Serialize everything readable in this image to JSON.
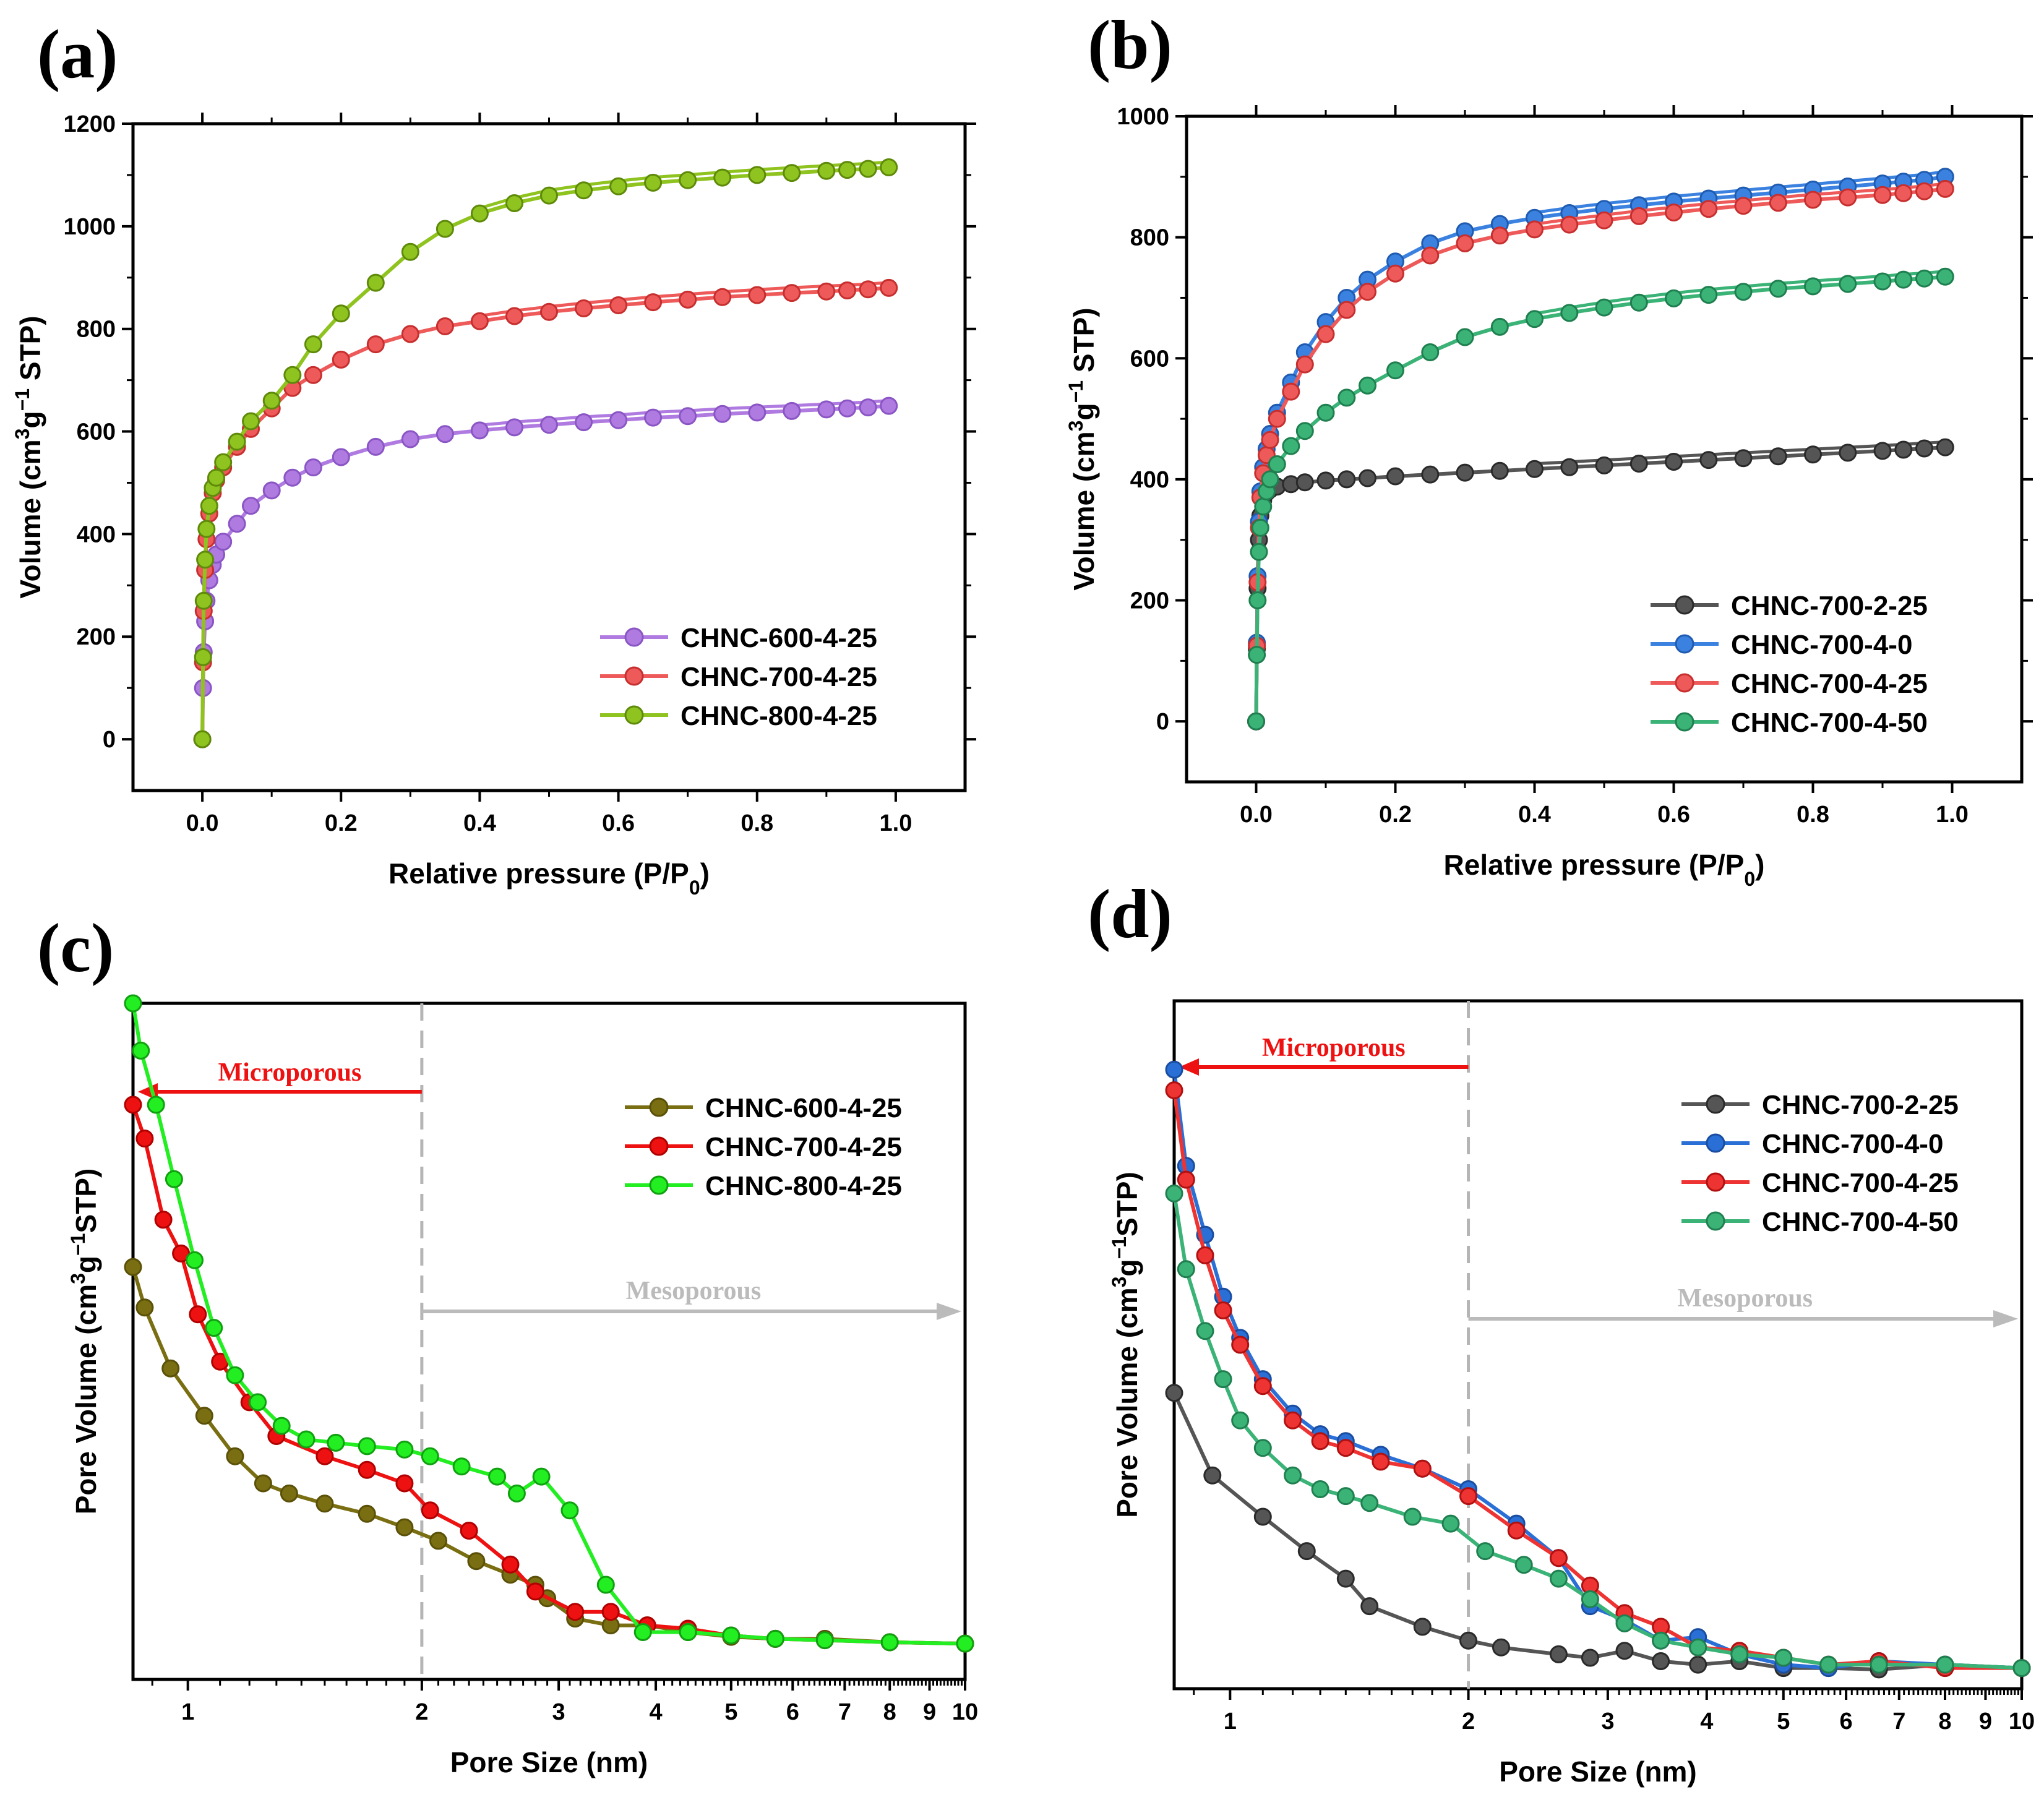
{
  "chart_data": [
    {
      "id": "a",
      "type": "scatter",
      "panel_label": "(a)",
      "xlabel": "Relative pressure (P/P",
      "xlabel_sub": "0",
      "xlabel_end": ")",
      "ylabel_pre": "Volume (cm",
      "ylabel_sup1": "3",
      "ylabel_mid": "g",
      "ylabel_sup2": "−1",
      "ylabel_post": " STP)",
      "xlim": [
        -0.1,
        1.1
      ],
      "ylim": [
        -100,
        1200
      ],
      "xticks": [
        "0.0",
        "0.2",
        "0.4",
        "0.6",
        "0.8",
        "1.0"
      ],
      "yticks": [
        "0",
        "200",
        "400",
        "600",
        "800",
        "1000",
        "1200"
      ],
      "legend_position": "bottom-right",
      "series": [
        {
          "name": "CHNC-600-4-25",
          "color": "#b07be0",
          "edge": "#8a55c4",
          "x": [
            0,
            0.001,
            0.002,
            0.004,
            0.006,
            0.01,
            0.015,
            0.02,
            0.03,
            0.05,
            0.07,
            0.1,
            0.13,
            0.16,
            0.2,
            0.25,
            0.3,
            0.35,
            0.4,
            0.45,
            0.5,
            0.55,
            0.6,
            0.65,
            0.7,
            0.75,
            0.8,
            0.85,
            0.9,
            0.93,
            0.96,
            0.99
          ],
          "values": [
            0,
            100,
            170,
            230,
            270,
            310,
            340,
            360,
            385,
            420,
            455,
            485,
            510,
            530,
            550,
            570,
            585,
            595,
            602,
            608,
            613,
            618,
            622,
            627,
            630,
            634,
            637,
            640,
            643,
            645,
            647,
            650
          ]
        },
        {
          "name": "CHNC-700-4-25",
          "color": "#ee5a5a",
          "edge": "#c72f2f",
          "x": [
            0,
            0.001,
            0.002,
            0.004,
            0.006,
            0.01,
            0.015,
            0.02,
            0.03,
            0.05,
            0.07,
            0.1,
            0.13,
            0.16,
            0.2,
            0.25,
            0.3,
            0.35,
            0.4,
            0.45,
            0.5,
            0.55,
            0.6,
            0.65,
            0.7,
            0.75,
            0.8,
            0.85,
            0.9,
            0.93,
            0.96,
            0.99
          ],
          "values": [
            0,
            150,
            250,
            330,
            390,
            440,
            480,
            505,
            530,
            570,
            605,
            645,
            685,
            710,
            740,
            770,
            790,
            805,
            815,
            825,
            833,
            840,
            846,
            852,
            857,
            862,
            866,
            870,
            873,
            875,
            877,
            880
          ]
        },
        {
          "name": "CHNC-800-4-25",
          "color": "#8fc31f",
          "edge": "#5e8a0a",
          "x": [
            0,
            0.001,
            0.002,
            0.004,
            0.006,
            0.01,
            0.015,
            0.02,
            0.03,
            0.05,
            0.07,
            0.1,
            0.13,
            0.16,
            0.2,
            0.25,
            0.3,
            0.35,
            0.4,
            0.45,
            0.5,
            0.55,
            0.6,
            0.65,
            0.7,
            0.75,
            0.8,
            0.85,
            0.9,
            0.93,
            0.96,
            0.99
          ],
          "values": [
            0,
            160,
            270,
            350,
            410,
            455,
            490,
            510,
            540,
            580,
            620,
            660,
            710,
            770,
            830,
            890,
            950,
            995,
            1025,
            1045,
            1060,
            1070,
            1078,
            1085,
            1090,
            1095,
            1100,
            1104,
            1108,
            1110,
            1112,
            1115
          ]
        }
      ]
    },
    {
      "id": "b",
      "type": "scatter",
      "panel_label": "(b)",
      "xlabel": "Relative pressure (P/P",
      "xlabel_sub": "0",
      "xlabel_end": ")",
      "ylabel_pre": "Volume (cm",
      "ylabel_sup1": "3",
      "ylabel_mid": "g",
      "ylabel_sup2": "−1",
      "ylabel_post": " STP)",
      "xlim": [
        -0.1,
        1.1
      ],
      "ylim": [
        -100,
        1000
      ],
      "xticks": [
        "0.0",
        "0.2",
        "0.4",
        "0.6",
        "0.8",
        "1.0"
      ],
      "yticks": [
        "0",
        "200",
        "400",
        "600",
        "800",
        "1000"
      ],
      "legend_position": "bottom-right",
      "series": [
        {
          "name": "CHNC-700-2-25",
          "color": "#555555",
          "edge": "#2a2a2a",
          "x": [
            0,
            0.001,
            0.002,
            0.004,
            0.006,
            0.01,
            0.015,
            0.02,
            0.03,
            0.05,
            0.07,
            0.1,
            0.13,
            0.16,
            0.2,
            0.25,
            0.3,
            0.35,
            0.4,
            0.45,
            0.5,
            0.55,
            0.6,
            0.65,
            0.7,
            0.75,
            0.8,
            0.85,
            0.9,
            0.93,
            0.96,
            0.99
          ],
          "values": [
            0,
            120,
            220,
            300,
            340,
            365,
            378,
            383,
            388,
            392,
            395,
            398,
            400,
            402,
            405,
            408,
            411,
            414,
            417,
            420,
            423,
            426,
            429,
            432,
            435,
            438,
            441,
            444,
            447,
            449,
            451,
            453
          ]
        },
        {
          "name": "CHNC-700-4-0",
          "color": "#3b82e0",
          "edge": "#1f5bb0",
          "x": [
            0,
            0.001,
            0.002,
            0.004,
            0.006,
            0.01,
            0.015,
            0.02,
            0.03,
            0.05,
            0.07,
            0.1,
            0.13,
            0.16,
            0.2,
            0.25,
            0.3,
            0.35,
            0.4,
            0.45,
            0.5,
            0.55,
            0.6,
            0.65,
            0.7,
            0.75,
            0.8,
            0.85,
            0.9,
            0.93,
            0.96,
            0.99
          ],
          "values": [
            0,
            130,
            240,
            330,
            380,
            420,
            450,
            475,
            510,
            560,
            610,
            660,
            700,
            730,
            760,
            790,
            810,
            822,
            832,
            840,
            847,
            853,
            859,
            864,
            869,
            874,
            879,
            884,
            889,
            892,
            895,
            900
          ]
        },
        {
          "name": "CHNC-700-4-25",
          "color": "#ee5a5a",
          "edge": "#c72f2f",
          "x": [
            0,
            0.001,
            0.002,
            0.004,
            0.006,
            0.01,
            0.015,
            0.02,
            0.03,
            0.05,
            0.07,
            0.1,
            0.13,
            0.16,
            0.2,
            0.25,
            0.3,
            0.35,
            0.4,
            0.45,
            0.5,
            0.55,
            0.6,
            0.65,
            0.7,
            0.75,
            0.8,
            0.85,
            0.9,
            0.93,
            0.96,
            0.99
          ],
          "values": [
            0,
            125,
            230,
            320,
            370,
            410,
            440,
            465,
            500,
            545,
            590,
            640,
            680,
            710,
            740,
            770,
            790,
            803,
            813,
            821,
            828,
            835,
            841,
            847,
            852,
            857,
            862,
            866,
            870,
            873,
            876,
            880
          ]
        },
        {
          "name": "CHNC-700-4-50",
          "color": "#3bb377",
          "edge": "#1f7f4f",
          "x": [
            0,
            0.001,
            0.002,
            0.004,
            0.006,
            0.01,
            0.015,
            0.02,
            0.03,
            0.05,
            0.07,
            0.1,
            0.13,
            0.16,
            0.2,
            0.25,
            0.3,
            0.35,
            0.4,
            0.45,
            0.5,
            0.55,
            0.6,
            0.65,
            0.7,
            0.75,
            0.8,
            0.85,
            0.9,
            0.93,
            0.96,
            0.99
          ],
          "values": [
            0,
            110,
            200,
            280,
            320,
            355,
            380,
            400,
            425,
            455,
            480,
            510,
            535,
            555,
            580,
            610,
            635,
            652,
            665,
            675,
            684,
            692,
            699,
            705,
            710,
            715,
            719,
            723,
            727,
            730,
            732,
            735
          ]
        }
      ]
    },
    {
      "id": "c",
      "type": "line",
      "panel_label": "(c)",
      "xscale": "log",
      "xlabel": "Pore Size (nm)",
      "ylabel_pre": "Pore Volume (cm",
      "ylabel_sup1": "3",
      "ylabel_mid": "g",
      "ylabel_sup2": "−1",
      "ylabel_post": "STP)",
      "xlim": [
        0.85,
        10
      ],
      "ylim": [
        0,
        1
      ],
      "xticks": [
        "1",
        "2",
        "3",
        "4",
        "5",
        "6",
        "7",
        "8",
        "9",
        "10"
      ],
      "xtick_values": [
        1,
        2,
        3,
        4,
        5,
        6,
        7,
        8,
        9,
        10
      ],
      "divider_x": 2,
      "legend_position": "top-right",
      "annotations": {
        "micro": "Microporous",
        "meso": "Mesoporous",
        "micro_color": "#ee1111",
        "meso_color": "#bbbbbb"
      },
      "series": [
        {
          "name": "CHNC-600-4-25",
          "color": "#7a6e12",
          "edge": "#5a5008",
          "x": [
            0.85,
            0.88,
            0.95,
            1.05,
            1.15,
            1.25,
            1.35,
            1.5,
            1.7,
            1.9,
            2.1,
            2.35,
            2.6,
            2.8,
            2.9,
            3.15,
            3.5,
            3.9,
            4.4,
            5.0,
            5.7,
            6.6,
            8.0,
            10
          ],
          "values": [
            0.61,
            0.55,
            0.46,
            0.39,
            0.33,
            0.29,
            0.275,
            0.26,
            0.245,
            0.225,
            0.205,
            0.175,
            0.155,
            0.14,
            0.12,
            0.09,
            0.08,
            0.08,
            0.07,
            0.063,
            0.06,
            0.06,
            0.055,
            0.053
          ]
        },
        {
          "name": "CHNC-700-4-25",
          "color": "#ee1111",
          "edge": "#b00000",
          "x": [
            0.85,
            0.88,
            0.93,
            0.98,
            1.03,
            1.1,
            1.2,
            1.3,
            1.5,
            1.7,
            1.9,
            2.05,
            2.3,
            2.6,
            2.8,
            3.15,
            3.5,
            3.9,
            4.4,
            5.0,
            5.7,
            6.6,
            8.0,
            10
          ],
          "values": [
            0.85,
            0.8,
            0.68,
            0.63,
            0.54,
            0.47,
            0.41,
            0.36,
            0.33,
            0.31,
            0.29,
            0.25,
            0.22,
            0.17,
            0.13,
            0.1,
            0.1,
            0.08,
            0.075,
            0.065,
            0.06,
            0.058,
            0.055,
            0.053
          ]
        },
        {
          "name": "CHNC-800-4-25",
          "color": "#22ee22",
          "edge": "#10a010",
          "x": [
            0.85,
            0.87,
            0.91,
            0.96,
            1.02,
            1.08,
            1.15,
            1.23,
            1.32,
            1.42,
            1.55,
            1.7,
            1.9,
            2.05,
            2.25,
            2.5,
            2.65,
            2.85,
            3.1,
            3.45,
            3.85,
            4.4,
            5.0,
            5.7,
            6.6,
            8.0,
            10
          ],
          "values": [
            1.0,
            0.93,
            0.85,
            0.74,
            0.62,
            0.52,
            0.45,
            0.41,
            0.375,
            0.355,
            0.35,
            0.345,
            0.34,
            0.33,
            0.315,
            0.3,
            0.275,
            0.3,
            0.25,
            0.14,
            0.07,
            0.07,
            0.065,
            0.06,
            0.058,
            0.055,
            0.053
          ]
        }
      ]
    },
    {
      "id": "d",
      "type": "line",
      "panel_label": "(d)",
      "xscale": "log",
      "xlabel": "Pore Size (nm)",
      "ylabel_pre": "Pore Volume (cm",
      "ylabel_sup1": "3",
      "ylabel_mid": "g",
      "ylabel_sup2": "−1",
      "ylabel_post": "STP)",
      "xlim": [
        0.85,
        10
      ],
      "ylim": [
        0,
        1
      ],
      "xticks": [
        "1",
        "2",
        "3",
        "4",
        "5",
        "6",
        "7",
        "8",
        "9",
        "10"
      ],
      "xtick_values": [
        1,
        2,
        3,
        4,
        5,
        6,
        7,
        8,
        9,
        10
      ],
      "divider_x": 2,
      "legend_position": "top-right",
      "annotations": {
        "micro": "Microporous",
        "meso": "Mesoporous",
        "micro_color": "#ee1111",
        "meso_color": "#bbbbbb"
      },
      "series": [
        {
          "name": "CHNC-700-2-25",
          "color": "#555555",
          "edge": "#2a2a2a",
          "x": [
            0.85,
            0.95,
            1.1,
            1.25,
            1.4,
            1.5,
            1.75,
            2.0,
            2.2,
            2.6,
            2.85,
            3.15,
            3.5,
            3.9,
            4.4,
            5.0,
            5.7,
            6.6,
            8.0,
            10
          ],
          "values": [
            0.43,
            0.31,
            0.25,
            0.2,
            0.16,
            0.12,
            0.09,
            0.07,
            0.06,
            0.05,
            0.045,
            0.055,
            0.04,
            0.035,
            0.04,
            0.03,
            0.03,
            0.028,
            0.035,
            0.03
          ]
        },
        {
          "name": "CHNC-700-4-0",
          "color": "#2a6fd6",
          "edge": "#1a4da0",
          "x": [
            0.85,
            0.88,
            0.93,
            0.98,
            1.03,
            1.1,
            1.2,
            1.3,
            1.4,
            1.55,
            1.75,
            2.0,
            2.3,
            2.6,
            2.85,
            3.15,
            3.5,
            3.9,
            4.4,
            5.0,
            5.7,
            6.6,
            8.0,
            10
          ],
          "values": [
            0.9,
            0.76,
            0.66,
            0.57,
            0.51,
            0.45,
            0.4,
            0.37,
            0.36,
            0.34,
            0.32,
            0.29,
            0.24,
            0.19,
            0.12,
            0.1,
            0.07,
            0.075,
            0.05,
            0.035,
            0.03,
            0.04,
            0.035,
            0.03
          ]
        },
        {
          "name": "CHNC-700-4-25",
          "color": "#ee3333",
          "edge": "#b01010",
          "x": [
            0.85,
            0.88,
            0.93,
            0.98,
            1.03,
            1.1,
            1.2,
            1.3,
            1.4,
            1.55,
            1.75,
            2.0,
            2.3,
            2.6,
            2.85,
            3.15,
            3.5,
            3.9,
            4.4,
            5.0,
            5.7,
            6.6,
            8.0,
            10
          ],
          "values": [
            0.87,
            0.74,
            0.63,
            0.55,
            0.5,
            0.44,
            0.39,
            0.36,
            0.35,
            0.33,
            0.32,
            0.28,
            0.23,
            0.19,
            0.15,
            0.11,
            0.09,
            0.06,
            0.055,
            0.045,
            0.035,
            0.04,
            0.03,
            0.03
          ]
        },
        {
          "name": "CHNC-700-4-50",
          "color": "#3bb377",
          "edge": "#1f7f4f",
          "x": [
            0.85,
            0.88,
            0.93,
            0.98,
            1.03,
            1.1,
            1.2,
            1.3,
            1.4,
            1.5,
            1.7,
            1.9,
            2.1,
            2.35,
            2.6,
            2.85,
            3.15,
            3.5,
            3.9,
            4.4,
            5.0,
            5.7,
            6.6,
            8.0,
            10
          ],
          "values": [
            0.72,
            0.61,
            0.52,
            0.45,
            0.39,
            0.35,
            0.31,
            0.29,
            0.28,
            0.27,
            0.25,
            0.24,
            0.2,
            0.18,
            0.16,
            0.13,
            0.095,
            0.07,
            0.06,
            0.05,
            0.045,
            0.035,
            0.035,
            0.035,
            0.03
          ]
        }
      ]
    }
  ]
}
